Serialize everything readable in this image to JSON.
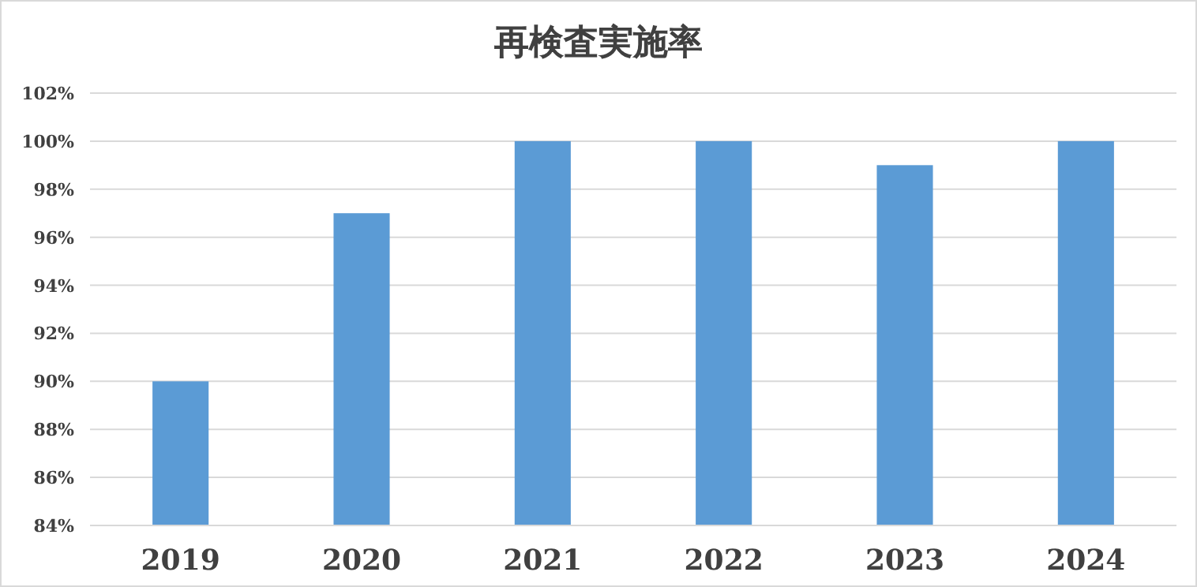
{
  "chart_data": {
    "type": "bar",
    "title": "再検査実施率",
    "categories": [
      "2019",
      "2020",
      "2021",
      "2022",
      "2023",
      "2024"
    ],
    "values": [
      90,
      97,
      100,
      100,
      99,
      100
    ],
    "color": "#5b9bd5",
    "ylim": [
      84,
      102
    ],
    "yticks": [
      {
        "value": 84,
        "label": "84%"
      },
      {
        "value": 86,
        "label": "86%"
      },
      {
        "value": 88,
        "label": "88%"
      },
      {
        "value": 90,
        "label": "90%"
      },
      {
        "value": 92,
        "label": "92%"
      },
      {
        "value": 94,
        "label": "94%"
      },
      {
        "value": 96,
        "label": "96%"
      },
      {
        "value": 98,
        "label": "98%"
      },
      {
        "value": 100,
        "label": "100%"
      },
      {
        "value": 102,
        "label": "102%"
      }
    ],
    "grid": "y"
  }
}
